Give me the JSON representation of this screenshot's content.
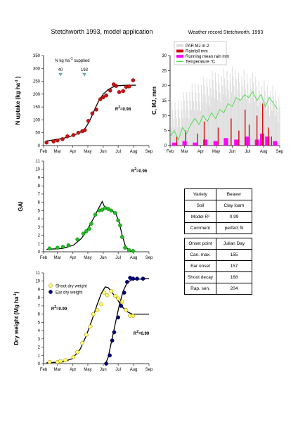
{
  "page": {
    "title": "Stetchworth 1993, model application",
    "weather_title": "Weather record Stetchworth, 1993"
  },
  "info_table": {
    "rows": [
      {
        "label": "Variety",
        "value": "Beaver"
      },
      {
        "label": "Soil",
        "value": "Clay loam"
      },
      {
        "label": "Model R²",
        "value": "0.99"
      },
      {
        "label": "Comment",
        "value": "perfect fit"
      }
    ]
  },
  "onset_table": {
    "header": [
      "Onset point",
      "Julian Day"
    ],
    "rows": [
      [
        "Can. max.",
        "155"
      ],
      [
        "Ear onset",
        "157"
      ],
      [
        "Shoot decay",
        "168"
      ],
      [
        "Rap. sen.",
        "204"
      ]
    ]
  },
  "colors": {
    "red": "#cc1111",
    "green": "#22bb22",
    "yellow": "#ffff66",
    "navy": "#000080",
    "magenta": "#ff00ff",
    "grey": "#dddddd",
    "lightgreen": "#44dd44",
    "arrow": "#7ab8c8"
  },
  "chart_data": [
    {
      "id": "n_uptake",
      "type": "scatter",
      "xlabel": "",
      "ylabel": "N uptake (kg ha-1)",
      "x_ticks": [
        "Feb",
        "Mar",
        "Apr",
        "May",
        "Jun",
        "Jul",
        "Aug",
        "Sep"
      ],
      "x_tick_days": [
        32,
        60,
        91,
        121,
        152,
        182,
        213,
        244
      ],
      "xlim": [
        32,
        244
      ],
      "ylim": [
        0,
        350
      ],
      "y_ticks": [
        0,
        50,
        100,
        150,
        200,
        250,
        300,
        350
      ],
      "annotation": "N kg ha-1 supplied",
      "fertilizer": [
        {
          "day": 66,
          "label": "40"
        },
        {
          "day": 114,
          "label": "193"
        }
      ],
      "r2_label": "R2=0.98",
      "series": [
        {
          "kind": "points",
          "color": "red",
          "points": [
            [
              38,
              12
            ],
            [
              52,
              16
            ],
            [
              60,
              20
            ],
            [
              70,
              25
            ],
            [
              80,
              36
            ],
            [
              92,
              41
            ],
            [
              102,
              50
            ],
            [
              110,
              56
            ],
            [
              115,
              60
            ],
            [
              122,
              96
            ],
            [
              130,
              125
            ],
            [
              138,
              140
            ],
            [
              146,
              180
            ],
            [
              152,
              188
            ],
            [
              158,
              195
            ],
            [
              166,
              214
            ],
            [
              173,
              238
            ],
            [
              178,
              232
            ],
            [
              184,
              208
            ],
            [
              192,
              212
            ],
            [
              198,
              228
            ],
            [
              204,
              230
            ],
            [
              212,
              254
            ]
          ]
        },
        {
          "kind": "line",
          "color": "black",
          "points": [
            [
              38,
              18
            ],
            [
              60,
              24
            ],
            [
              80,
              32
            ],
            [
              100,
              46
            ],
            [
              112,
              58
            ],
            [
              120,
              80
            ],
            [
              128,
              110
            ],
            [
              136,
              146
            ],
            [
              144,
              178
            ],
            [
              152,
              200
            ],
            [
              162,
              218
            ],
            [
              172,
              228
            ],
            [
              182,
              233
            ],
            [
              200,
              235
            ],
            [
              218,
              235
            ]
          ]
        }
      ]
    },
    {
      "id": "weather",
      "type": "bar",
      "ylabel": "C, MJ, mm",
      "x_ticks": [
        "Feb",
        "Mar",
        "Apr",
        "May",
        "Jun",
        "Jul",
        "Aug",
        "Sep"
      ],
      "x_tick_days": [
        32,
        60,
        91,
        121,
        152,
        182,
        213,
        244
      ],
      "xlim": [
        32,
        244
      ],
      "ylim": [
        0,
        30
      ],
      "y_ticks": [
        0,
        5,
        10,
        15,
        20,
        25,
        30
      ],
      "legend": [
        "PAR MJ m-2",
        "Rainfall mm",
        "Running mean rain mm",
        "Temperature °C"
      ],
      "rainfall": [
        [
          45,
          3
        ],
        [
          62,
          5
        ],
        [
          85,
          4
        ],
        [
          98,
          8
        ],
        [
          125,
          6
        ],
        [
          150,
          9
        ],
        [
          165,
          5
        ],
        [
          177,
          12
        ],
        [
          185,
          7
        ],
        [
          200,
          10
        ],
        [
          211,
          14
        ],
        [
          222,
          6
        ],
        [
          228,
          3
        ]
      ],
      "rain_mean": [
        [
          40,
          1
        ],
        [
          60,
          1.5
        ],
        [
          80,
          1
        ],
        [
          100,
          2
        ],
        [
          120,
          1.5
        ],
        [
          140,
          2.5
        ],
        [
          160,
          2
        ],
        [
          180,
          3
        ],
        [
          200,
          2
        ],
        [
          210,
          4
        ],
        [
          220,
          3
        ],
        [
          235,
          1.5
        ]
      ],
      "temperature": [
        [
          32,
          3
        ],
        [
          40,
          5
        ],
        [
          48,
          2
        ],
        [
          56,
          6
        ],
        [
          64,
          4
        ],
        [
          72,
          7
        ],
        [
          80,
          9
        ],
        [
          88,
          7
        ],
        [
          96,
          10
        ],
        [
          104,
          8
        ],
        [
          112,
          11
        ],
        [
          120,
          9
        ],
        [
          128,
          12
        ],
        [
          136,
          11
        ],
        [
          144,
          14
        ],
        [
          152,
          13
        ],
        [
          160,
          16
        ],
        [
          168,
          15
        ],
        [
          176,
          17
        ],
        [
          184,
          16
        ],
        [
          192,
          18
        ],
        [
          200,
          15
        ],
        [
          208,
          17
        ],
        [
          216,
          13
        ],
        [
          224,
          16
        ],
        [
          232,
          14
        ],
        [
          240,
          12
        ]
      ]
    },
    {
      "id": "gai",
      "type": "scatter",
      "ylabel": "GAI",
      "x_ticks": [
        "Feb",
        "Mar",
        "Apr",
        "May",
        "Jun",
        "Jul",
        "Aug",
        "Sep"
      ],
      "x_tick_days": [
        32,
        60,
        91,
        121,
        152,
        182,
        213,
        244
      ],
      "xlim": [
        32,
        244
      ],
      "ylim": [
        0,
        11
      ],
      "y_ticks": [
        0,
        1,
        2,
        3,
        4,
        5,
        6,
        7,
        8,
        9,
        10,
        11
      ],
      "r2_label": "R2=0.96",
      "series": [
        {
          "kind": "points",
          "color": "green",
          "points": [
            [
              44,
              0.4
            ],
            [
              60,
              0.5
            ],
            [
              71,
              0.6
            ],
            [
              82,
              0.8
            ],
            [
              100,
              1.5
            ],
            [
              112,
              2.2
            ],
            [
              118,
              2.5
            ],
            [
              124,
              2.8
            ],
            [
              128,
              3.4
            ],
            [
              136,
              4.5
            ],
            [
              144,
              5.0
            ],
            [
              150,
              5.1
            ],
            [
              156,
              5.3
            ],
            [
              162,
              5.2
            ],
            [
              168,
              5.0
            ],
            [
              176,
              4.7
            ],
            [
              182,
              3.8
            ],
            [
              186,
              3.2
            ],
            [
              190,
              1.8
            ],
            [
              196,
              0.5
            ],
            [
              204,
              0.2
            ],
            [
              212,
              0.1
            ]
          ]
        },
        {
          "kind": "line",
          "color": "black",
          "points": [
            [
              38,
              0.3
            ],
            [
              70,
              0.4
            ],
            [
              92,
              0.8
            ],
            [
              108,
              1.6
            ],
            [
              120,
              2.7
            ],
            [
              132,
              4.0
            ],
            [
              142,
              5.2
            ],
            [
              150,
              6.1
            ],
            [
              155,
              5.4
            ],
            [
              162,
              5.3
            ],
            [
              170,
              5.0
            ],
            [
              178,
              4.5
            ],
            [
              184,
              3.6
            ],
            [
              190,
              2.0
            ],
            [
              196,
              0.8
            ],
            [
              204,
              0.1
            ],
            [
              214,
              0
            ]
          ]
        }
      ]
    },
    {
      "id": "dry_weight",
      "type": "scatter",
      "ylabel": "Dry weight (Mg ha-1)",
      "x_ticks": [
        "Feb",
        "Mar",
        "Apr",
        "May",
        "Jun",
        "Jul",
        "Aug",
        "Sep"
      ],
      "x_tick_days": [
        32,
        60,
        91,
        121,
        152,
        182,
        213,
        244
      ],
      "xlim": [
        32,
        244
      ],
      "ylim": [
        0,
        11
      ],
      "y_ticks": [
        0,
        1,
        2,
        3,
        4,
        5,
        6,
        7,
        8,
        9,
        10,
        11
      ],
      "r2_labels": [
        "R2=0.99",
        "R2=0.99"
      ],
      "series": [
        {
          "kind": "points",
          "name": "Shoot dry weight",
          "color": "yellow",
          "points": [
            [
              44,
              0.2
            ],
            [
              60,
              0.2
            ],
            [
              66,
              0.3
            ],
            [
              76,
              0.4
            ],
            [
              92,
              0.8
            ],
            [
              100,
              1.4
            ],
            [
              110,
              2.5
            ],
            [
              118,
              3.5
            ],
            [
              126,
              4.5
            ],
            [
              132,
              6.0
            ],
            [
              140,
              6.5
            ],
            [
              148,
              7.2
            ],
            [
              154,
              8.6
            ],
            [
              160,
              8.3
            ],
            [
              168,
              8.8
            ],
            [
              176,
              8.2
            ],
            [
              182,
              7.9
            ],
            [
              190,
              7.5
            ],
            [
              198,
              6.5
            ],
            [
              206,
              5.8
            ],
            [
              212,
              5.8
            ]
          ]
        },
        {
          "kind": "points",
          "name": "Ear dry weight",
          "color": "navy",
          "points": [
            [
              158,
              0
            ],
            [
              165,
              1.0
            ],
            [
              170,
              2.8
            ],
            [
              174,
              3.8
            ],
            [
              182,
              5.6
            ],
            [
              188,
              7.0
            ],
            [
              194,
              8.6
            ],
            [
              200,
              9.9
            ],
            [
              206,
              10.4
            ],
            [
              212,
              10.3
            ],
            [
              220,
              10.3
            ],
            [
              232,
              10.3
            ]
          ]
        },
        {
          "kind": "line",
          "color": "black",
          "points": [
            [
              38,
              0.1
            ],
            [
              70,
              0.2
            ],
            [
              90,
              0.6
            ],
            [
              106,
              1.8
            ],
            [
              118,
              3.4
            ],
            [
              130,
              5.4
            ],
            [
              140,
              7.2
            ],
            [
              148,
              8.5
            ],
            [
              156,
              9.3
            ],
            [
              162,
              9.2
            ],
            [
              170,
              8.6
            ],
            [
              180,
              7.8
            ],
            [
              190,
              6.9
            ],
            [
              200,
              6.3
            ],
            [
              210,
              6.0
            ],
            [
              244,
              6.0
            ]
          ]
        },
        {
          "kind": "line",
          "color": "black",
          "points": [
            [
              157,
              0
            ],
            [
              162,
              0.8
            ],
            [
              168,
              2.5
            ],
            [
              176,
              4.8
            ],
            [
              184,
              7.0
            ],
            [
              192,
              8.8
            ],
            [
              200,
              9.8
            ],
            [
              210,
              10.2
            ],
            [
              244,
              10.3
            ]
          ]
        }
      ]
    }
  ]
}
